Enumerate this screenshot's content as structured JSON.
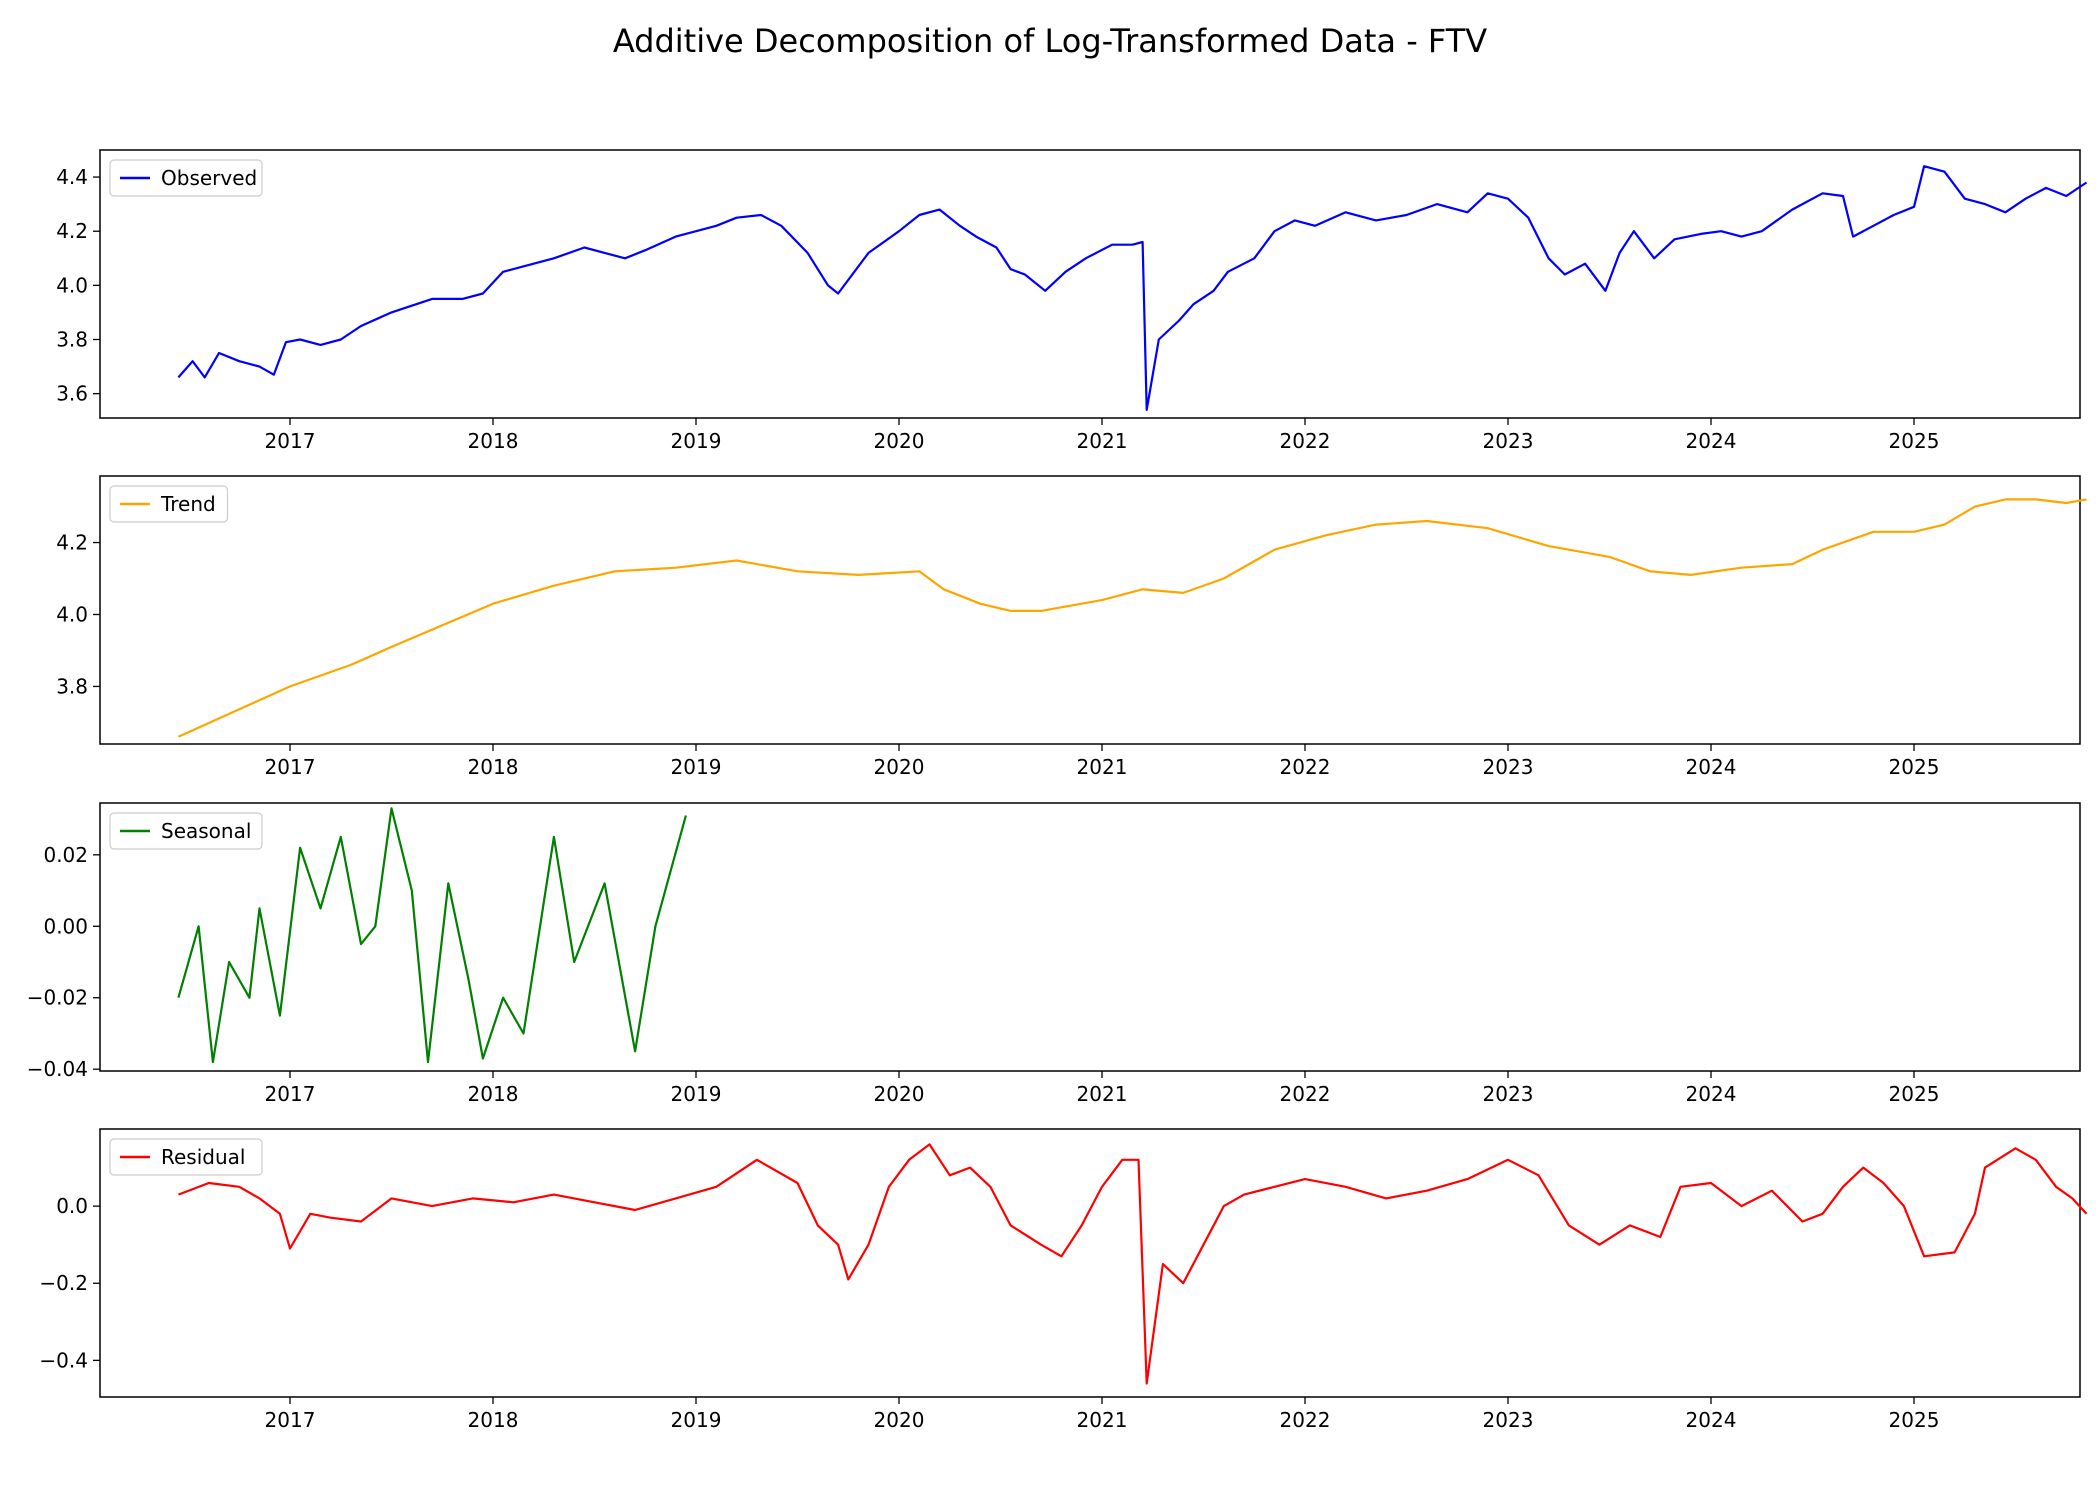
{
  "chart_data": [
    {
      "type": "line",
      "panel": "observed",
      "title": "Additive Decomposition of Log-Transformed Data - FTV",
      "series": [
        {
          "name": "Observed",
          "color": "#0000ff"
        }
      ],
      "xlim": [
        2016.45,
        2025.85
      ],
      "ylim": [
        3.51,
        4.5
      ],
      "xticks": [
        "2017",
        "2018",
        "2019",
        "2020",
        "2021",
        "2022",
        "2023",
        "2024",
        "2025"
      ],
      "yticks": [
        "3.6",
        "3.8",
        "4.0",
        "4.2",
        "4.4"
      ],
      "ytick_values": [
        3.6,
        3.8,
        4.0,
        4.2,
        4.4
      ],
      "legend": "top-left",
      "points": [
        [
          2016.45,
          3.66
        ],
        [
          2016.52,
          3.72
        ],
        [
          2016.58,
          3.66
        ],
        [
          2016.65,
          3.75
        ],
        [
          2016.75,
          3.72
        ],
        [
          2016.85,
          3.7
        ],
        [
          2016.92,
          3.67
        ],
        [
          2016.98,
          3.79
        ],
        [
          2017.05,
          3.8
        ],
        [
          2017.15,
          3.78
        ],
        [
          2017.25,
          3.8
        ],
        [
          2017.35,
          3.85
        ],
        [
          2017.5,
          3.9
        ],
        [
          2017.7,
          3.95
        ],
        [
          2017.85,
          3.95
        ],
        [
          2017.95,
          3.97
        ],
        [
          2018.05,
          4.05
        ],
        [
          2018.2,
          4.08
        ],
        [
          2018.3,
          4.1
        ],
        [
          2018.45,
          4.14
        ],
        [
          2018.55,
          4.12
        ],
        [
          2018.65,
          4.1
        ],
        [
          2018.75,
          4.13
        ],
        [
          2018.9,
          4.18
        ],
        [
          2019.0,
          4.2
        ],
        [
          2019.1,
          4.22
        ],
        [
          2019.2,
          4.25
        ],
        [
          2019.32,
          4.26
        ],
        [
          2019.42,
          4.22
        ],
        [
          2019.55,
          4.12
        ],
        [
          2019.65,
          4.0
        ],
        [
          2019.7,
          3.97
        ],
        [
          2019.85,
          4.12
        ],
        [
          2020.0,
          4.2
        ],
        [
          2020.1,
          4.26
        ],
        [
          2020.2,
          4.28
        ],
        [
          2020.3,
          4.22
        ],
        [
          2020.38,
          4.18
        ],
        [
          2020.48,
          4.14
        ],
        [
          2020.55,
          4.06
        ],
        [
          2020.62,
          4.04
        ],
        [
          2020.72,
          3.98
        ],
        [
          2020.82,
          4.05
        ],
        [
          2020.92,
          4.1
        ],
        [
          2021.05,
          4.15
        ],
        [
          2021.15,
          4.15
        ],
        [
          2021.2,
          4.16
        ],
        [
          2021.22,
          3.54
        ],
        [
          2021.28,
          3.8
        ],
        [
          2021.38,
          3.87
        ],
        [
          2021.45,
          3.93
        ],
        [
          2021.55,
          3.98
        ],
        [
          2021.62,
          4.05
        ],
        [
          2021.75,
          4.1
        ],
        [
          2021.85,
          4.2
        ],
        [
          2021.95,
          4.24
        ],
        [
          2022.05,
          4.22
        ],
        [
          2022.2,
          4.27
        ],
        [
          2022.35,
          4.24
        ],
        [
          2022.5,
          4.26
        ],
        [
          2022.65,
          4.3
        ],
        [
          2022.8,
          4.27
        ],
        [
          2022.9,
          4.34
        ],
        [
          2023.0,
          4.32
        ],
        [
          2023.1,
          4.25
        ],
        [
          2023.2,
          4.1
        ],
        [
          2023.28,
          4.04
        ],
        [
          2023.38,
          4.08
        ],
        [
          2023.48,
          3.98
        ],
        [
          2023.55,
          4.12
        ],
        [
          2023.62,
          4.2
        ],
        [
          2023.72,
          4.1
        ],
        [
          2023.82,
          4.17
        ],
        [
          2023.95,
          4.19
        ],
        [
          2024.05,
          4.2
        ],
        [
          2024.15,
          4.18
        ],
        [
          2024.25,
          4.2
        ],
        [
          2024.4,
          4.28
        ],
        [
          2024.55,
          4.34
        ],
        [
          2024.65,
          4.33
        ],
        [
          2024.7,
          4.18
        ],
        [
          2024.8,
          4.22
        ],
        [
          2024.9,
          4.26
        ],
        [
          2025.0,
          4.29
        ],
        [
          2025.05,
          4.44
        ],
        [
          2025.15,
          4.42
        ],
        [
          2025.25,
          4.32
        ],
        [
          2025.35,
          4.3
        ],
        [
          2025.45,
          4.27
        ],
        [
          2025.55,
          4.32
        ],
        [
          2025.65,
          4.36
        ],
        [
          2025.75,
          4.33
        ],
        [
          2025.85,
          4.38
        ]
      ]
    },
    {
      "type": "line",
      "panel": "trend",
      "series": [
        {
          "name": "Trend",
          "color": "#ffa500"
        }
      ],
      "xlim": [
        2016.45,
        2025.85
      ],
      "ylim": [
        3.64,
        4.385
      ],
      "xticks": [
        "2017",
        "2018",
        "2019",
        "2020",
        "2021",
        "2022",
        "2023",
        "2024",
        "2025"
      ],
      "yticks": [
        "3.8",
        "4.0",
        "4.2"
      ],
      "ytick_values": [
        3.8,
        4.0,
        4.2
      ],
      "legend": "top-left",
      "points": [
        [
          2016.45,
          3.66
        ],
        [
          2017.0,
          3.8
        ],
        [
          2017.3,
          3.86
        ],
        [
          2017.5,
          3.91
        ],
        [
          2018.0,
          4.03
        ],
        [
          2018.3,
          4.08
        ],
        [
          2018.6,
          4.12
        ],
        [
          2018.9,
          4.13
        ],
        [
          2019.2,
          4.15
        ],
        [
          2019.5,
          4.12
        ],
        [
          2019.8,
          4.11
        ],
        [
          2020.1,
          4.12
        ],
        [
          2020.22,
          4.07
        ],
        [
          2020.4,
          4.03
        ],
        [
          2020.55,
          4.01
        ],
        [
          2020.7,
          4.01
        ],
        [
          2021.0,
          4.04
        ],
        [
          2021.2,
          4.07
        ],
        [
          2021.4,
          4.06
        ],
        [
          2021.6,
          4.1
        ],
        [
          2021.85,
          4.18
        ],
        [
          2022.1,
          4.22
        ],
        [
          2022.35,
          4.25
        ],
        [
          2022.6,
          4.26
        ],
        [
          2022.9,
          4.24
        ],
        [
          2023.2,
          4.19
        ],
        [
          2023.5,
          4.16
        ],
        [
          2023.7,
          4.12
        ],
        [
          2023.9,
          4.11
        ],
        [
          2024.15,
          4.13
        ],
        [
          2024.4,
          4.14
        ],
        [
          2024.55,
          4.18
        ],
        [
          2024.8,
          4.23
        ],
        [
          2025.0,
          4.23
        ],
        [
          2025.15,
          4.25
        ],
        [
          2025.3,
          4.3
        ],
        [
          2025.45,
          4.32
        ],
        [
          2025.6,
          4.32
        ],
        [
          2025.75,
          4.31
        ],
        [
          2025.85,
          4.32
        ]
      ]
    },
    {
      "type": "line",
      "panel": "seasonal",
      "series": [
        {
          "name": "Seasonal",
          "color": "#008000"
        }
      ],
      "xlim": [
        2016.45,
        2025.85
      ],
      "ylim": [
        -0.0405,
        0.0345
      ],
      "xticks": [
        "2017",
        "2018",
        "2019",
        "2020",
        "2021",
        "2022",
        "2023",
        "2024",
        "2025"
      ],
      "yticks": [
        "0.02",
        "0.00",
        "−0.02",
        "−0.04"
      ],
      "ytick_values": [
        0.02,
        0.0,
        -0.02,
        -0.04
      ],
      "legend": "top-left",
      "points": [
        [
          2016.45,
          -0.02
        ],
        [
          2016.55,
          0.0
        ],
        [
          2016.62,
          -0.038
        ],
        [
          2016.7,
          -0.01
        ],
        [
          2016.8,
          -0.02
        ],
        [
          2016.85,
          0.005
        ],
        [
          2016.95,
          -0.025
        ],
        [
          2017.05,
          0.022
        ],
        [
          2017.15,
          0.005
        ],
        [
          2017.25,
          0.025
        ],
        [
          2017.35,
          -0.005
        ],
        [
          2017.42,
          0.0
        ],
        [
          2017.5,
          0.033
        ],
        [
          2017.6,
          0.01
        ],
        [
          2017.68,
          -0.038
        ],
        [
          2017.78,
          0.012
        ],
        [
          2017.88,
          -0.015
        ],
        [
          2017.95,
          -0.037
        ],
        [
          2018.05,
          -0.02
        ],
        [
          2018.15,
          -0.03
        ],
        [
          2018.3,
          0.025
        ],
        [
          2018.4,
          -0.01
        ],
        [
          2018.55,
          0.012
        ],
        [
          2018.7,
          -0.035
        ],
        [
          2018.8,
          0.0
        ],
        [
          2018.95,
          0.031
        ]
      ]
    },
    {
      "type": "line",
      "panel": "residual",
      "series": [
        {
          "name": "Residual",
          "color": "#ff0000"
        }
      ],
      "xlim": [
        2016.45,
        2025.85
      ],
      "ylim": [
        -0.495,
        0.2
      ],
      "xticks": [
        "2017",
        "2018",
        "2019",
        "2020",
        "2021",
        "2022",
        "2023",
        "2024",
        "2025"
      ],
      "yticks": [
        "0.0",
        "−0.2",
        "−0.4"
      ],
      "ytick_values": [
        0.0,
        -0.2,
        -0.4
      ],
      "legend": "top-left",
      "points": [
        [
          2016.45,
          0.03
        ],
        [
          2016.6,
          0.06
        ],
        [
          2016.75,
          0.05
        ],
        [
          2016.85,
          0.02
        ],
        [
          2016.95,
          -0.02
        ],
        [
          2017.0,
          -0.11
        ],
        [
          2017.1,
          -0.02
        ],
        [
          2017.2,
          -0.03
        ],
        [
          2017.35,
          -0.04
        ],
        [
          2017.5,
          0.02
        ],
        [
          2017.7,
          0.0
        ],
        [
          2017.9,
          0.02
        ],
        [
          2018.1,
          0.01
        ],
        [
          2018.3,
          0.03
        ],
        [
          2018.5,
          0.01
        ],
        [
          2018.7,
          -0.01
        ],
        [
          2018.9,
          0.02
        ],
        [
          2019.1,
          0.05
        ],
        [
          2019.3,
          0.12
        ],
        [
          2019.5,
          0.06
        ],
        [
          2019.6,
          -0.05
        ],
        [
          2019.7,
          -0.1
        ],
        [
          2019.75,
          -0.19
        ],
        [
          2019.85,
          -0.1
        ],
        [
          2019.95,
          0.05
        ],
        [
          2020.05,
          0.12
        ],
        [
          2020.15,
          0.16
        ],
        [
          2020.25,
          0.08
        ],
        [
          2020.35,
          0.1
        ],
        [
          2020.45,
          0.05
        ],
        [
          2020.55,
          -0.05
        ],
        [
          2020.7,
          -0.1
        ],
        [
          2020.8,
          -0.13
        ],
        [
          2020.9,
          -0.05
        ],
        [
          2021.0,
          0.05
        ],
        [
          2021.1,
          0.12
        ],
        [
          2021.18,
          0.12
        ],
        [
          2021.22,
          -0.46
        ],
        [
          2021.3,
          -0.15
        ],
        [
          2021.4,
          -0.2
        ],
        [
          2021.5,
          -0.1
        ],
        [
          2021.6,
          0.0
        ],
        [
          2021.7,
          0.03
        ],
        [
          2021.85,
          0.05
        ],
        [
          2022.0,
          0.07
        ],
        [
          2022.2,
          0.05
        ],
        [
          2022.4,
          0.02
        ],
        [
          2022.6,
          0.04
        ],
        [
          2022.8,
          0.07
        ],
        [
          2023.0,
          0.12
        ],
        [
          2023.15,
          0.08
        ],
        [
          2023.3,
          -0.05
        ],
        [
          2023.45,
          -0.1
        ],
        [
          2023.6,
          -0.05
        ],
        [
          2023.75,
          -0.08
        ],
        [
          2023.85,
          0.05
        ],
        [
          2024.0,
          0.06
        ],
        [
          2024.15,
          0.0
        ],
        [
          2024.3,
          0.04
        ],
        [
          2024.45,
          -0.04
        ],
        [
          2024.55,
          -0.02
        ],
        [
          2024.65,
          0.05
        ],
        [
          2024.75,
          0.1
        ],
        [
          2024.85,
          0.06
        ],
        [
          2024.95,
          0.0
        ],
        [
          2025.05,
          -0.13
        ],
        [
          2025.2,
          -0.12
        ],
        [
          2025.3,
          -0.02
        ],
        [
          2025.35,
          0.1
        ],
        [
          2025.5,
          0.15
        ],
        [
          2025.6,
          0.12
        ],
        [
          2025.7,
          0.05
        ],
        [
          2025.78,
          0.02
        ],
        [
          2025.85,
          -0.02
        ]
      ]
    }
  ]
}
